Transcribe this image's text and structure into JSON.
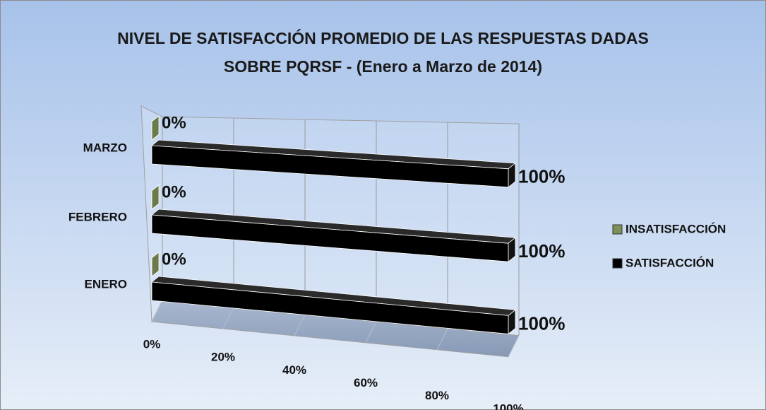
{
  "chart_data": {
    "type": "bar3d",
    "orientation": "horizontal",
    "title": "NIVEL DE SATISFACCIÓN PROMEDIO DE LAS RESPUESTAS DADAS\nSOBRE PQRSF - (Enero a Marzo de 2014)",
    "categories": [
      "ENERO",
      "FEBRERO",
      "MARZO"
    ],
    "series": [
      {
        "name": "INSATISFACCIÓN",
        "color": "#7f8f5a",
        "values": [
          0,
          0,
          0
        ],
        "value_labels": [
          "0%",
          "0%",
          "0%"
        ]
      },
      {
        "name": "SATISFACCIÓN",
        "color": "#000000",
        "values": [
          100,
          100,
          100
        ],
        "value_labels": [
          "100%",
          "100%",
          "100%"
        ]
      }
    ],
    "xlim": [
      0,
      100
    ],
    "xticks": [
      {
        "value": 0,
        "label": "0%"
      },
      {
        "value": 20,
        "label": "20%"
      },
      {
        "value": 40,
        "label": "40%"
      },
      {
        "value": 60,
        "label": "60%"
      },
      {
        "value": 80,
        "label": "80%"
      },
      {
        "value": 100,
        "label": "100%"
      }
    ],
    "grid": true,
    "legend": "right"
  }
}
